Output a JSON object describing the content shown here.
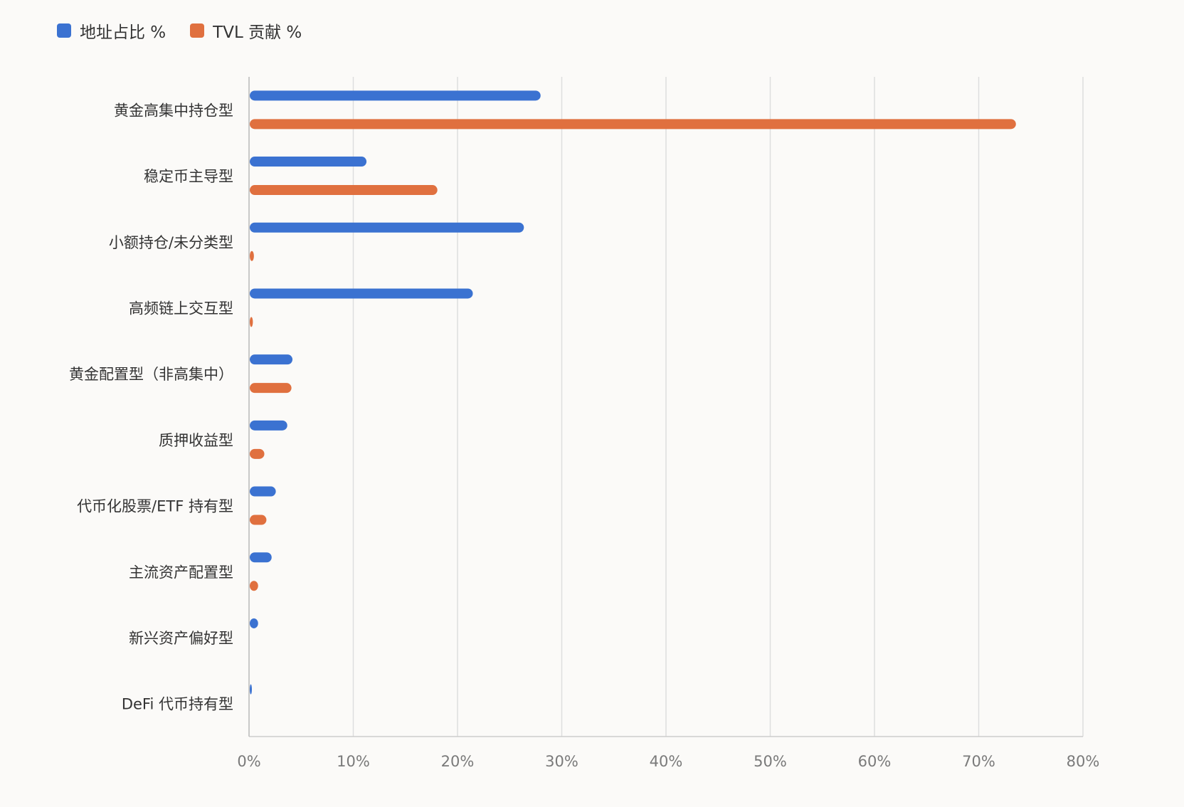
{
  "colors": {
    "address": "#3b72d1",
    "tvl": "#e0703f",
    "grid": "#dedede",
    "text": "#333333",
    "tick": "#7a7a7a"
  },
  "chart_data": {
    "type": "bar",
    "orientation": "horizontal",
    "categories": [
      "黄金高集中持仓型",
      "稳定币主导型",
      "小额持仓/未分类型",
      "高频链上交互型",
      "黄金配置型（非高集中）",
      "质押收益型",
      "代币化股票/ETF 持有型",
      "主流资产配置型",
      "新兴资产偏好型",
      "DeFi 代币持有型"
    ],
    "series": [
      {
        "name": "地址占比 %",
        "color": "#3b72d1",
        "values": [
          27.9,
          11.2,
          26.3,
          21.4,
          4.1,
          3.6,
          2.5,
          2.1,
          0.8,
          0.1
        ]
      },
      {
        "name": "TVL 贡献 %",
        "color": "#e0703f",
        "values": [
          73.5,
          18.0,
          0.4,
          0.3,
          4.0,
          1.4,
          1.6,
          0.8,
          0.0,
          0.0
        ]
      }
    ],
    "xlim": [
      0,
      80
    ],
    "xticks": [
      "0%",
      "10%",
      "20%",
      "30%",
      "40%",
      "50%",
      "60%",
      "70%",
      "80%"
    ],
    "legend_position": "top-left",
    "grid": "vertical"
  }
}
